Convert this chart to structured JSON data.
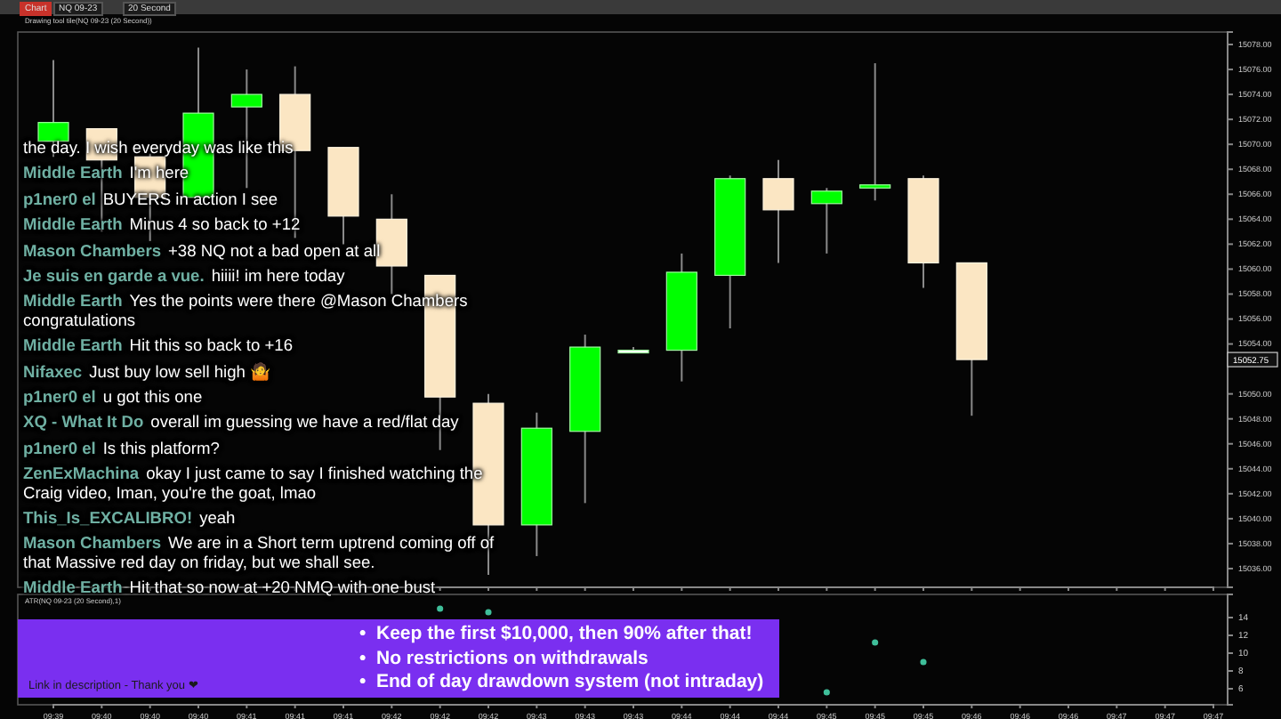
{
  "chart_data": [
    {
      "type": "candlestick",
      "title": "Drawing tool tile(NQ 09-23 (20 Second))",
      "categories": [
        null,
        null,
        null,
        null,
        null,
        null,
        null,
        null,
        null,
        null,
        null,
        null,
        null,
        null,
        null,
        null,
        null,
        null,
        null,
        null,
        null,
        null,
        null,
        null,
        null
      ],
      "ohlc": [
        [
          15070.25,
          15076.75,
          15069,
          15071.75
        ],
        [
          15071.25,
          15071.25,
          15063,
          15068.75
        ],
        [
          15069,
          15069.25,
          15062.25,
          15065.75
        ],
        [
          15065.75,
          15077.75,
          15065.5,
          15072.5
        ],
        [
          15073,
          15076,
          15066.5,
          15074
        ],
        [
          15074,
          15076.25,
          15062.5,
          15069.5
        ],
        [
          15069.75,
          15069.75,
          15062,
          15064.25
        ],
        [
          15064,
          15066,
          15058,
          15060.25
        ],
        [
          15059.5,
          15059.5,
          15045.5,
          15049.75
        ],
        [
          15049.25,
          15050,
          15035.5,
          15039.5
        ],
        [
          15039.5,
          15048.5,
          15037,
          15047.25
        ],
        [
          15047,
          15054.75,
          15041.25,
          15053.75
        ],
        [
          15053.5,
          15053.75,
          15053.25,
          15053.5
        ],
        [
          15053.5,
          15061.25,
          15051,
          15059.75
        ],
        [
          15059.5,
          15067.5,
          15055.25,
          15067.25
        ],
        [
          15067.25,
          15068.75,
          15060.5,
          15064.75
        ],
        [
          15065.25,
          15066.5,
          15061.25,
          15066.25
        ],
        [
          15066.5,
          15076.5,
          15065.5,
          15066.75
        ],
        [
          15067.25,
          15067.5,
          15058.5,
          15060.5
        ],
        [
          15060.5,
          15060.5,
          15048.25,
          15052.75
        ],
        null,
        null,
        null,
        null,
        null
      ],
      "colors": [
        "#00ff00",
        "#fbe6c3",
        "#fbe6c3",
        "#00ff00",
        "#00ff00",
        "#fbe6c3",
        "#fbe6c3",
        "#fbe6c3",
        "#fbe6c3",
        "#fbe6c3",
        "#00ff00",
        "#00ff00",
        "#ffffff",
        "#00ff00",
        "#00ff00",
        "#fbe6c3",
        "#00ff00",
        "#00ff00",
        "#fbe6c3",
        "#fbe6c3",
        null,
        null,
        null,
        null,
        null
      ],
      "ylim": [
        15034.5,
        15079
      ],
      "yticks": [
        {
          "value": 15036,
          "label": "15036.00"
        },
        {
          "value": 15038,
          "label": "15038.00"
        },
        {
          "value": 15040,
          "label": "15040.00"
        },
        {
          "value": 15042,
          "label": "15042.00"
        },
        {
          "value": 15044,
          "label": "15044.00"
        },
        {
          "value": 15046,
          "label": "15046.00"
        },
        {
          "value": 15048,
          "label": "15048.00"
        },
        {
          "value": 15050,
          "label": "15050.00"
        },
        {
          "value": 15054,
          "label": "15054.00"
        },
        {
          "value": 15056,
          "label": "15056.00"
        },
        {
          "value": 15058,
          "label": "15058.00"
        },
        {
          "value": 15060,
          "label": "15060.00"
        },
        {
          "value": 15062,
          "label": "15062.00"
        },
        {
          "value": 15064,
          "label": "15064.00"
        },
        {
          "value": 15066,
          "label": "15066.00"
        },
        {
          "value": 15068,
          "label": "15068.00"
        },
        {
          "value": 15070,
          "label": "15070.00"
        },
        {
          "value": 15072,
          "label": "15072.00"
        },
        {
          "value": 15074,
          "label": "15074.00"
        },
        {
          "value": 15076,
          "label": "15076.00"
        },
        {
          "value": 15078,
          "label": "15078.00"
        }
      ],
      "annotations": [
        "15052.75"
      ]
    },
    {
      "type": "scatter",
      "title": "ATR(NQ 09-23 (20 Second),1)",
      "marker": "circle",
      "categories": [
        "09:39",
        "09:40",
        "09:40",
        "09:40",
        "09:41",
        "09:41",
        "09:41",
        "09:42",
        "09:42",
        "09:42",
        "09:43",
        "09:43",
        "09:43",
        "09:44",
        "09:44",
        "09:44",
        "09:45",
        "09:45",
        "09:45",
        "09:46",
        "09:46",
        "09:46",
        "09:47",
        "09:47",
        "09:47"
      ],
      "series": [
        {
          "color": "#3fbf9a",
          "values": [
            null,
            null,
            null,
            null,
            null,
            null,
            null,
            null,
            15,
            14.6,
            null,
            null,
            null,
            null,
            null,
            null,
            5.6,
            11.2,
            9,
            null,
            null,
            null,
            null,
            null,
            null
          ]
        }
      ],
      "ylim": [
        4.2,
        16.6
      ],
      "yticks": [
        6,
        8,
        10,
        12,
        14
      ]
    },
    {
      "type": "other",
      "annotations": [
        "Chart",
        "NQ 09-23",
        "20 Second"
      ]
    },
    {
      "type": "other",
      "categories": [
        null,
        "Middle Earth",
        "p1ner0 el",
        "Middle Earth",
        "Mason Chambers",
        "Je suis en garde a vue.",
        "Middle Earth",
        "Middle Earth",
        "Nifaxec",
        "p1ner0 el",
        "XQ - What It Do",
        "p1ner0 el",
        "ZenExMachina",
        "This_Is_EXCALIBRO!",
        "Mason Chambers",
        "Middle Earth"
      ],
      "annotations": [
        "the day. I wish everyday was like this",
        "I'm here",
        "BUYERS in action I see",
        "Minus 4 so back to +12",
        "+38 NQ not a bad open at all",
        "hiiii! im here today",
        "Yes the points were there @Mason Chambers congratulations",
        "Hit this so back to +16",
        "Just buy low sell high 🤷",
        "u got this one",
        "overall im guessing we have a red/flat day",
        "Is this platform?",
        "okay I just came to say I finished watching the Craig video, Iman, you're the goat, lmao",
        "yeah",
        "We are in a Short term uptrend coming off of that Massive red day on friday, but we shall see.",
        "Hit that so now at +20 NMQ with one bust"
      ]
    },
    {
      "type": "other",
      "annotations": [
        "Link in description - Thank you ❤",
        "•  Keep the first $10,000, then 90% after that!",
        "•  No restrictions on withdrawals",
        "•  End of day drawdown system (not intraday)"
      ]
    }
  ]
}
